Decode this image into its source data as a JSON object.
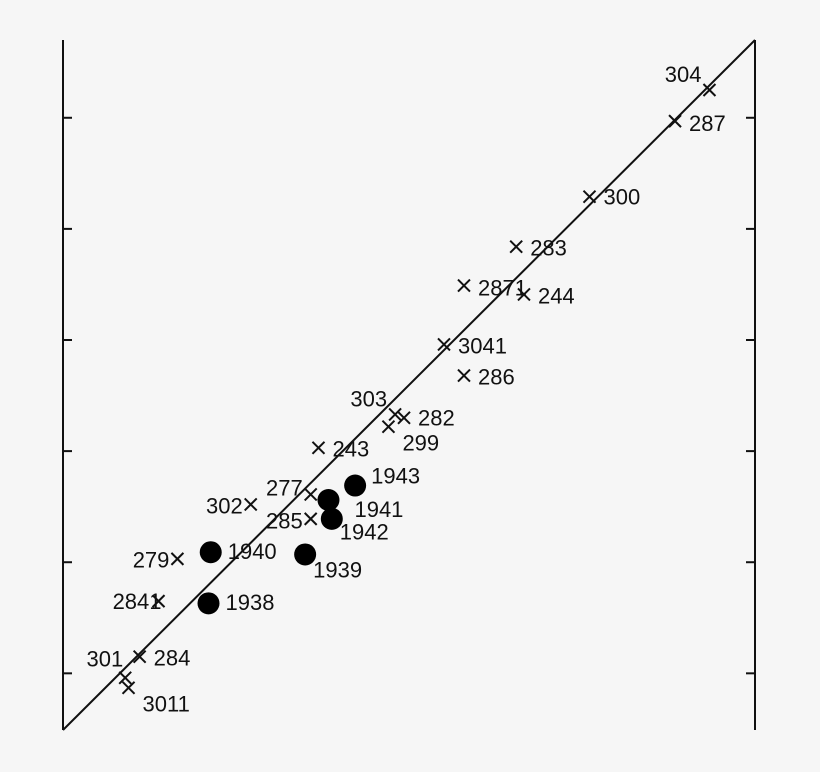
{
  "chart_data": {
    "type": "scatter",
    "xlim": [
      0.49,
      6.72
    ],
    "ylim": [
      0.49,
      6.7
    ],
    "yticks": [
      1,
      2,
      3,
      4,
      5,
      6
    ],
    "reference_line": true,
    "series": [
      {
        "marker": "x",
        "color": "#111111",
        "labels": [
          "304",
          "287",
          "300",
          "283",
          "2871",
          "244",
          "3041",
          "286",
          "303",
          "282",
          "299",
          "243",
          "277",
          "302",
          "285",
          "279",
          "2841",
          "284",
          "301",
          "3011"
        ],
        "x": [
          6.31,
          6.0,
          5.23,
          4.57,
          4.1,
          4.64,
          3.92,
          4.1,
          3.48,
          3.56,
          3.42,
          2.79,
          2.72,
          2.18,
          2.72,
          1.52,
          1.35,
          1.18,
          1.05,
          1.08
        ],
        "values": [
          6.25,
          5.97,
          5.29,
          4.84,
          4.49,
          4.41,
          3.96,
          3.68,
          3.33,
          3.3,
          3.22,
          3.03,
          2.61,
          2.52,
          2.39,
          2.03,
          1.65,
          1.15,
          0.96,
          0.87
        ]
      },
      {
        "marker": "dot",
        "color": "#000000",
        "labels": [
          "1943",
          "1941",
          "1942",
          "1940",
          "1939",
          "1938"
        ],
        "x": [
          3.12,
          2.88,
          2.91,
          1.82,
          2.67,
          1.8
        ],
        "values": [
          2.69,
          2.56,
          2.39,
          2.09,
          2.07,
          1.63
        ]
      }
    ]
  }
}
